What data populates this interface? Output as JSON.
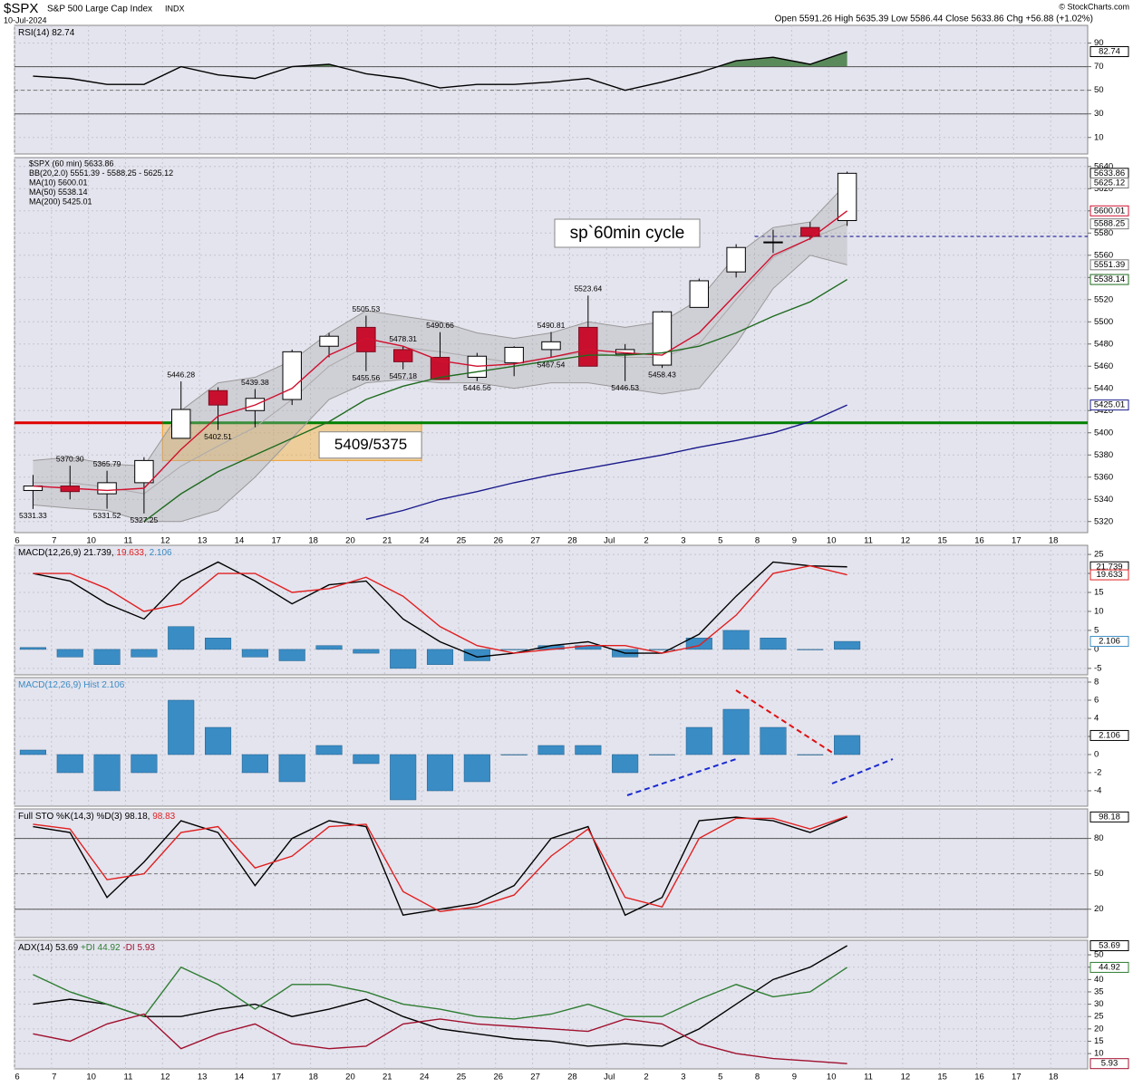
{
  "header": {
    "symbol": "$SPX",
    "name": "S&P 500 Large Cap Index",
    "exchange": "INDX",
    "date": "10-Jul-2024",
    "quote": "Open 5591.26  High 5635.39  Low 5586.44  Close 5633.86  Chg +56.88 (+1.02%)",
    "source": "© StockCharts.com",
    "annotation": "sp`60min cycle"
  },
  "chart_data": [
    {
      "type": "line",
      "ylim": [
        -4,
        105
      ],
      "yticks": [
        10,
        30,
        50,
        70,
        90
      ],
      "hlines": [
        {
          "value": 70,
          "color": "#555"
        },
        {
          "value": 30,
          "color": "#555"
        },
        {
          "value": 50,
          "color": "#777",
          "dashed": true
        }
      ],
      "fill_above": {
        "value": 70,
        "color": "#5a8a5a"
      },
      "series": [
        {
          "name": "RSI(14) 82.74",
          "color": "#000000",
          "values": [
            62,
            60,
            55,
            55,
            70,
            63,
            60,
            70,
            72,
            64,
            60,
            52,
            55,
            55,
            57,
            60,
            50,
            57,
            65,
            75,
            78,
            72,
            82.74,
            null,
            null,
            null,
            null,
            null,
            null
          ]
        }
      ],
      "last_labels": [
        {
          "value": 82.74,
          "color": "#000000"
        }
      ]
    },
    {
      "type": "candlestick",
      "ylim": [
        5310,
        5648
      ],
      "yticks": [
        5320,
        5340,
        5360,
        5380,
        5400,
        5420,
        5440,
        5460,
        5480,
        5500,
        5520,
        5540,
        5560,
        5580,
        5600,
        5620,
        5640
      ],
      "categories": [
        "6",
        "7",
        "10",
        "11",
        "12",
        "13",
        "14",
        "17",
        "18",
        "20",
        "21",
        "24",
        "25",
        "26",
        "27",
        "28",
        "Jul",
        "2",
        "3",
        "5",
        "8",
        "9",
        "10",
        "11",
        "12",
        "15",
        "16",
        "17",
        "18"
      ],
      "hlines": [
        {
          "value": 5409,
          "color": "#e00000",
          "to": "12",
          "width": 3
        },
        {
          "value": 5409,
          "color": "#008000",
          "from": "12",
          "width": 3
        },
        {
          "value": 5577,
          "color": "#00008b",
          "dashed": true,
          "from": "8"
        }
      ],
      "zones": [
        {
          "low": 5375,
          "high": 5409,
          "from": "12",
          "to": "21",
          "label": "5409/5375"
        }
      ],
      "series": [
        {
          "name": "$SPX (60 min) 5633.86",
          "color": "#000000",
          "open": [
            5348,
            5352,
            5345,
            5355,
            5395,
            5438,
            5420,
            5430,
            5478,
            5495,
            5475,
            5468,
            5450,
            5463,
            5475,
            5495,
            5471,
            5461,
            5513,
            5545,
            5572,
            5585,
            5591.26,
            null,
            null,
            null,
            null,
            null,
            null
          ],
          "high": [
            5362,
            5370.3,
            5365.79,
            5378,
            5446.28,
            5441,
            5439.38,
            5475,
            5490,
            5505.53,
            5478.31,
            5490.66,
            5472,
            5478,
            5490.81,
            5523.64,
            5480,
            5510,
            5539,
            5570,
            5583,
            5590,
            5635.39,
            null,
            null,
            null,
            null,
            null,
            null
          ],
          "low": [
            5331.33,
            5340,
            5331.52,
            5327.25,
            5395,
            5402.51,
            5405,
            5425,
            5468,
            5455.56,
            5457.18,
            5448,
            5446.56,
            5451,
            5467.54,
            5460,
            5446.53,
            5458.43,
            5513,
            5540,
            5562,
            5574,
            5586.44,
            null,
            null,
            null,
            null,
            null,
            null
          ],
          "close": [
            5352,
            5347,
            5355,
            5375,
            5421,
            5425,
            5431,
            5473,
            5487,
            5473,
            5464,
            5448,
            5469,
            5477,
            5482,
            5460,
            5475,
            5509,
            5537,
            5567,
            5572,
            5577,
            5633.86,
            null,
            null,
            null,
            null,
            null,
            null
          ]
        },
        {
          "name": "BB(20,2.0) 5551.39 - 5588.25 - 5625.12",
          "kind": "band",
          "color": "#999999",
          "upper": [
            5375,
            5378,
            5372,
            5370,
            5420,
            5445,
            5450,
            5465,
            5490,
            5510,
            5505,
            5500,
            5490,
            5485,
            5490,
            5500,
            5495,
            5500,
            5520,
            5560,
            5585,
            5590,
            5625.12,
            null,
            null,
            null,
            null,
            null,
            null
          ],
          "middle": [
            5355,
            5355,
            5351,
            5345,
            5370,
            5388,
            5405,
            5430,
            5460,
            5478,
            5477,
            5473,
            5468,
            5463,
            5468,
            5473,
            5468,
            5468,
            5480,
            5520,
            5558,
            5575,
            5588.25,
            null,
            null,
            null,
            null,
            null,
            null
          ],
          "lower": [
            5335,
            5332,
            5330,
            5320,
            5320,
            5330,
            5360,
            5395,
            5430,
            5445,
            5448,
            5445,
            5445,
            5440,
            5445,
            5445,
            5440,
            5435,
            5440,
            5480,
            5530,
            5560,
            5551.39,
            null,
            null,
            null,
            null,
            null,
            null
          ]
        },
        {
          "name": "MA(10) 5600.01",
          "kind": "line",
          "color": "#d0102e",
          "values": [
            5352,
            5350,
            5348,
            5350,
            5385,
            5415,
            5425,
            5440,
            5470,
            5485,
            5478,
            5465,
            5460,
            5462,
            5468,
            5475,
            5472,
            5470,
            5490,
            5525,
            5560,
            5575,
            5600.01,
            null,
            null,
            null,
            null,
            null,
            null
          ]
        },
        {
          "name": "MA(50) 5538.14",
          "kind": "line",
          "color": "#1e6b1e",
          "values": [
            null,
            null,
            null,
            5320,
            5345,
            5365,
            5380,
            5395,
            5410,
            5430,
            5442,
            5450,
            5455,
            5460,
            5465,
            5470,
            5470,
            5472,
            5478,
            5490,
            5505,
            5518,
            5538.14,
            null,
            null,
            null,
            null,
            null,
            null
          ]
        },
        {
          "name": "MA(200) 5425.01",
          "kind": "line",
          "color": "#1a1a8c",
          "values": [
            null,
            null,
            null,
            null,
            null,
            null,
            null,
            null,
            null,
            5322,
            5330,
            5340,
            5347,
            5355,
            5362,
            5368,
            5374,
            5380,
            5387,
            5393,
            5400,
            5410,
            5425.01,
            null,
            null,
            null,
            null,
            null,
            null
          ]
        }
      ],
      "point_labels": [
        {
          "x": "6",
          "value": 5331.33,
          "label": "5331.33"
        },
        {
          "x": "7",
          "value": 5370.3,
          "label": "5370.30"
        },
        {
          "x": "10",
          "value": 5331.52,
          "label": "5331.52"
        },
        {
          "x": "10",
          "value": 5365.79,
          "label": "5365.79"
        },
        {
          "x": "11",
          "value": 5327.25,
          "label": "5327.25"
        },
        {
          "x": "12",
          "value": 5446.28,
          "label": "5446.28"
        },
        {
          "x": "13",
          "value": 5402.51,
          "label": "5402.51"
        },
        {
          "x": "14",
          "value": 5439.38,
          "label": "5439.38"
        },
        {
          "x": "20",
          "value": 5505.53,
          "label": "5505.53"
        },
        {
          "x": "20",
          "value": 5455.56,
          "label": "5455.56"
        },
        {
          "x": "21",
          "value": 5478.31,
          "label": "5478.31"
        },
        {
          "x": "21",
          "value": 5457.18,
          "label": "5457.18"
        },
        {
          "x": "24",
          "value": 5490.66,
          "label": "5490.66"
        },
        {
          "x": "25",
          "value": 5446.56,
          "label": "5446.56"
        },
        {
          "x": "27",
          "value": 5490.81,
          "label": "5490.81"
        },
        {
          "x": "27",
          "value": 5467.54,
          "label": "5467.54"
        },
        {
          "x": "28",
          "value": 5523.64,
          "label": "5523.64"
        },
        {
          "x": "Jul",
          "value": 5446.53,
          "label": "5446.53"
        },
        {
          "x": "2",
          "value": 5458.43,
          "label": "5458.43"
        }
      ],
      "last_labels": [
        {
          "value": 5633.86,
          "color": "#000000"
        },
        {
          "value": 5625.12,
          "color": "#777777"
        },
        {
          "value": 5600.01,
          "color": "#d0102e"
        },
        {
          "value": 5588.25,
          "color": "#777777"
        },
        {
          "value": 5551.39,
          "color": "#777777"
        },
        {
          "value": 5538.14,
          "color": "#1e6b1e"
        },
        {
          "value": 5425.01,
          "color": "#1a1a8c"
        }
      ]
    },
    {
      "type": "line",
      "ylim": [
        -6.7,
        27.4
      ],
      "yticks": [
        -5,
        0,
        5,
        10,
        15,
        20,
        25
      ],
      "series": [
        {
          "name": "MACD(12,26,9) 21.739,",
          "color": "#000000",
          "values": [
            20,
            18,
            12,
            8,
            18,
            23,
            18,
            12,
            17,
            18,
            8,
            2,
            -2,
            -1,
            1,
            2,
            -1,
            -1,
            4,
            14,
            23,
            22,
            21.739,
            null,
            null,
            null,
            null,
            null,
            null
          ]
        },
        {
          "name": "19.633,",
          "color": "#e02020",
          "values": [
            20,
            20,
            16,
            10,
            12,
            20,
            20,
            15,
            16,
            19,
            14,
            6,
            1,
            -1,
            0,
            1,
            1,
            -1,
            1,
            9,
            20,
            22,
            19.633,
            null,
            null,
            null,
            null,
            null,
            null
          ]
        },
        {
          "name": "2.106",
          "kind": "bar",
          "color": "#3a8cc4",
          "values": [
            0.5,
            -2,
            -4,
            -2,
            6,
            3,
            -2,
            -3,
            1,
            -1,
            -5,
            -4,
            -3,
            0,
            1,
            1,
            -2,
            0,
            3,
            5,
            3,
            0,
            2.106,
            null,
            null,
            null,
            null,
            null,
            null
          ]
        }
      ],
      "last_labels": [
        {
          "value": 21.739,
          "color": "#000000"
        },
        {
          "value": 19.633,
          "color": "#e02020"
        },
        {
          "value": 2.106,
          "color": "#3a8cc4"
        }
      ]
    },
    {
      "type": "bar",
      "ylim": [
        -5.7,
        8.5
      ],
      "yticks": [
        -4,
        -2,
        0,
        2,
        4,
        6,
        8
      ],
      "series": [
        {
          "name": "MACD(12,26,9) Hist 2.106",
          "color": "#3a8cc4",
          "values": [
            0.5,
            -2,
            -4,
            -2,
            6,
            3,
            -2,
            -3,
            1,
            -1,
            -5,
            -4,
            -3,
            0,
            1,
            1,
            -2,
            0,
            3,
            5,
            3,
            0,
            2.106,
            null,
            null,
            null,
            null,
            null,
            null
          ]
        }
      ],
      "last_labels": [
        {
          "value": 2.106,
          "color": "#000000"
        }
      ]
    },
    {
      "type": "line",
      "ylim": [
        -4,
        105
      ],
      "yticks": [
        20,
        50,
        80
      ],
      "hlines": [
        {
          "value": 80,
          "color": "#555"
        },
        {
          "value": 20,
          "color": "#555"
        },
        {
          "value": 50,
          "color": "#777",
          "dashed": true
        }
      ],
      "series": [
        {
          "name": "Full STO %K(14,3) %D(3) 98.18,",
          "color": "#000000",
          "values": [
            90,
            85,
            30,
            60,
            95,
            85,
            40,
            80,
            95,
            90,
            15,
            20,
            25,
            40,
            80,
            90,
            15,
            30,
            95,
            98,
            95,
            85,
            98.18,
            null,
            null,
            null,
            null,
            null,
            null
          ]
        },
        {
          "name": "98.83",
          "color": "#e02020",
          "values": [
            92,
            88,
            45,
            50,
            85,
            90,
            55,
            65,
            90,
            92,
            35,
            18,
            22,
            32,
            65,
            88,
            30,
            22,
            80,
            97,
            97,
            88,
            98.83,
            null,
            null,
            null,
            null,
            null,
            null
          ]
        }
      ],
      "last_labels": [
        {
          "value": 98.18,
          "color": "#000000"
        }
      ]
    },
    {
      "type": "line",
      "ylim": [
        3.8,
        55.9
      ],
      "yticks": [
        10,
        15,
        20,
        25,
        30,
        35,
        40,
        45,
        50
      ],
      "categories": [
        "6",
        "7",
        "10",
        "11",
        "12",
        "13",
        "14",
        "17",
        "18",
        "20",
        "21",
        "24",
        "25",
        "26",
        "27",
        "28",
        "Jul",
        "2",
        "3",
        "5",
        "8",
        "9",
        "10",
        "11",
        "12",
        "15",
        "16",
        "17",
        "18"
      ],
      "series": [
        {
          "name": "ADX(14) 53.69",
          "color": "#000000",
          "values": [
            30,
            32,
            30,
            25,
            25,
            28,
            30,
            25,
            28,
            32,
            25,
            20,
            18,
            16,
            15,
            13,
            14,
            13,
            20,
            30,
            40,
            45,
            53.69,
            null,
            null,
            null,
            null,
            null,
            null
          ]
        },
        {
          "name": "+DI 44.92",
          "color": "#2e7d32",
          "values": [
            42,
            35,
            30,
            25,
            45,
            38,
            28,
            38,
            38,
            35,
            30,
            28,
            25,
            24,
            26,
            30,
            25,
            25,
            32,
            38,
            33,
            35,
            44.92,
            null,
            null,
            null,
            null,
            null,
            null
          ]
        },
        {
          "name": "-DI 5.93",
          "color": "#a0102e",
          "values": [
            18,
            15,
            22,
            26,
            12,
            18,
            22,
            14,
            12,
            13,
            22,
            24,
            22,
            21,
            20,
            19,
            24,
            22,
            14,
            10,
            8,
            7,
            5.93,
            null,
            null,
            null,
            null,
            null,
            null
          ]
        }
      ],
      "last_labels": [
        {
          "value": 53.69,
          "color": "#000000"
        },
        {
          "value": 44.92,
          "color": "#2e7d32"
        },
        {
          "value": 5.93,
          "color": "#a0102e"
        }
      ]
    }
  ]
}
